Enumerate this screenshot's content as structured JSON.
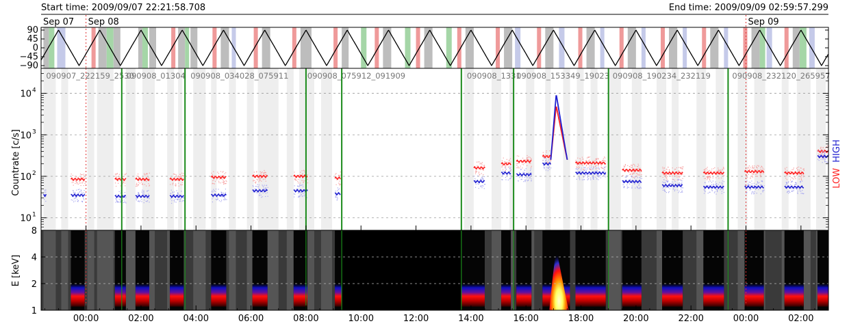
{
  "header": {
    "start_time": "Start time: 2009/09/07 22:21:58.708",
    "end_time": "End time: 2009/09/09 02:59:57.299"
  },
  "chart_data": {
    "type": "line",
    "time_axis": {
      "start_hour": -1.6336,
      "end_hour": 27.0,
      "tick_labels": [
        "00:00",
        "02:00",
        "04:00",
        "06:00",
        "08:00",
        "10:00",
        "12:00",
        "14:00",
        "16:00",
        "18:00",
        "20:00",
        "22:00",
        "00:00",
        "02:00"
      ],
      "tick_hours": [
        0,
        2,
        4,
        6,
        8,
        10,
        12,
        14,
        16,
        18,
        20,
        22,
        24,
        26
      ],
      "date_labels": [
        {
          "text": "Sep 07",
          "hour": -1.6336
        },
        {
          "text": "Sep 08",
          "hour": 0
        },
        {
          "text": "Sep 09",
          "hour": 24
        }
      ],
      "day_boundary_hours": [
        0,
        24
      ]
    },
    "angle_panel": {
      "ylim": [
        -90,
        90
      ],
      "ticks": [
        90,
        45,
        0,
        -45,
        -90
      ],
      "tick_labels": [
        "90",
        "45",
        "0",
        "−45",
        "−90"
      ],
      "period_hours": 1.5,
      "phase_hour": -1.0,
      "bands": [
        {
          "start": -1.55,
          "end": -1.35,
          "color": "#bdbdbd"
        },
        {
          "start": -1.35,
          "end": -1.15,
          "color": "#a5d6a7"
        },
        {
          "start": -1.05,
          "end": -0.75,
          "color": "#c5cae9"
        },
        {
          "start": 0.2,
          "end": 0.35,
          "color": "#ef9a9a"
        },
        {
          "start": 0.45,
          "end": 0.75,
          "color": "#bdbdbd"
        },
        {
          "start": 0.75,
          "end": 1.0,
          "color": "#a5d6a7"
        },
        {
          "start": 1.0,
          "end": 1.25,
          "color": "#bdbdbd"
        },
        {
          "start": 1.9,
          "end": 2.05,
          "color": "#bdbdbd"
        },
        {
          "start": 2.05,
          "end": 2.25,
          "color": "#a5d6a7"
        },
        {
          "start": 2.3,
          "end": 2.55,
          "color": "#bdbdbd"
        },
        {
          "start": 3.1,
          "end": 3.25,
          "color": "#ef9a9a"
        },
        {
          "start": 3.35,
          "end": 3.6,
          "color": "#bdbdbd"
        },
        {
          "start": 3.6,
          "end": 3.75,
          "color": "#a5d6a7"
        },
        {
          "start": 3.8,
          "end": 4.05,
          "color": "#bdbdbd"
        },
        {
          "start": 4.6,
          "end": 4.75,
          "color": "#ef9a9a"
        },
        {
          "start": 4.9,
          "end": 5.2,
          "color": "#bdbdbd"
        },
        {
          "start": 5.3,
          "end": 5.45,
          "color": "#c5cae9"
        },
        {
          "start": 6.1,
          "end": 6.25,
          "color": "#ef9a9a"
        },
        {
          "start": 6.4,
          "end": 6.7,
          "color": "#bdbdbd"
        },
        {
          "start": 7.5,
          "end": 7.65,
          "color": "#ef9a9a"
        },
        {
          "start": 7.8,
          "end": 8.2,
          "color": "#bdbdbd"
        },
        {
          "start": 9.0,
          "end": 9.15,
          "color": "#ef9a9a"
        },
        {
          "start": 9.3,
          "end": 9.55,
          "color": "#bdbdbd"
        },
        {
          "start": 10.0,
          "end": 10.2,
          "color": "#a5d6a7"
        },
        {
          "start": 10.5,
          "end": 10.65,
          "color": "#ef9a9a"
        },
        {
          "start": 10.8,
          "end": 11.1,
          "color": "#bdbdbd"
        },
        {
          "start": 11.6,
          "end": 11.8,
          "color": "#a5d6a7"
        },
        {
          "start": 12.0,
          "end": 12.15,
          "color": "#ef9a9a"
        },
        {
          "start": 12.3,
          "end": 12.6,
          "color": "#bdbdbd"
        },
        {
          "start": 13.1,
          "end": 13.3,
          "color": "#a5d6a7"
        },
        {
          "start": 13.5,
          "end": 13.65,
          "color": "#ef9a9a"
        },
        {
          "start": 13.8,
          "end": 14.1,
          "color": "#bdbdbd"
        },
        {
          "start": 14.9,
          "end": 15.05,
          "color": "#ef9a9a"
        },
        {
          "start": 15.2,
          "end": 15.5,
          "color": "#bdbdbd"
        },
        {
          "start": 15.6,
          "end": 15.8,
          "color": "#c5cae9"
        },
        {
          "start": 16.4,
          "end": 16.55,
          "color": "#ef9a9a"
        },
        {
          "start": 16.7,
          "end": 17.0,
          "color": "#bdbdbd"
        },
        {
          "start": 17.2,
          "end": 17.4,
          "color": "#c5cae9"
        },
        {
          "start": 17.9,
          "end": 18.05,
          "color": "#ef9a9a"
        },
        {
          "start": 18.2,
          "end": 18.5,
          "color": "#bdbdbd"
        },
        {
          "start": 18.7,
          "end": 18.85,
          "color": "#c5cae9"
        },
        {
          "start": 19.4,
          "end": 19.55,
          "color": "#ef9a9a"
        },
        {
          "start": 19.7,
          "end": 20.0,
          "color": "#bdbdbd"
        },
        {
          "start": 20.2,
          "end": 20.35,
          "color": "#c5cae9"
        },
        {
          "start": 20.9,
          "end": 21.05,
          "color": "#ef9a9a"
        },
        {
          "start": 21.2,
          "end": 21.5,
          "color": "#bdbdbd"
        },
        {
          "start": 21.7,
          "end": 21.85,
          "color": "#c5cae9"
        },
        {
          "start": 22.4,
          "end": 22.55,
          "color": "#ef9a9a"
        },
        {
          "start": 22.7,
          "end": 23.0,
          "color": "#bdbdbd"
        },
        {
          "start": 23.2,
          "end": 23.35,
          "color": "#c5cae9"
        },
        {
          "start": 23.9,
          "end": 24.05,
          "color": "#ef9a9a"
        },
        {
          "start": 24.2,
          "end": 24.5,
          "color": "#bdbdbd"
        },
        {
          "start": 24.5,
          "end": 24.7,
          "color": "#a5d6a7"
        },
        {
          "start": 24.75,
          "end": 24.95,
          "color": "#c5cae9"
        },
        {
          "start": 25.4,
          "end": 25.55,
          "color": "#ef9a9a"
        },
        {
          "start": 25.7,
          "end": 25.95,
          "color": "#bdbdbd"
        },
        {
          "start": 25.95,
          "end": 26.2,
          "color": "#a5d6a7"
        },
        {
          "start": 26.3,
          "end": 26.5,
          "color": "#c5cae9"
        }
      ]
    },
    "countrate_panel": {
      "ylabel": "Countrate [c/s]",
      "scale": "log",
      "ylim": [
        5,
        40000
      ],
      "major_ticks": [
        10,
        100,
        1000,
        10000
      ],
      "tick_labels": [
        {
          "base": "10",
          "exp": "1"
        },
        {
          "base": "10",
          "exp": "2"
        },
        {
          "base": "10",
          "exp": "3"
        },
        {
          "base": "10",
          "exp": "4"
        }
      ],
      "gridlines": [
        10,
        100,
        1000,
        10000
      ],
      "legend": [
        {
          "name": "LOW",
          "color": "#ff2020"
        },
        {
          "name": "HIGH",
          "color": "#2020d0"
        }
      ],
      "observation_labels": [
        {
          "text": "090907_222159_2530",
          "hour": -1.5
        },
        {
          "text": "090908_01304",
          "hour": 1.42
        },
        {
          "text": "090908_034028_075911",
          "hour": 3.75
        },
        {
          "text": "090908_075912_091909",
          "hour": 8.0
        },
        {
          "text": "090908_1331",
          "hour": 13.8
        },
        {
          "text": "090908_153349_19023",
          "hour": 15.6
        },
        {
          "text": "090908_190234_232119",
          "hour": 19.1
        },
        {
          "text": "090908_232120_265957",
          "hour": 23.45
        }
      ],
      "segment_boundaries": [
        1.3,
        3.6,
        8.0,
        9.3,
        13.65,
        15.55,
        19.0,
        23.35
      ],
      "shaded_intervals": [
        {
          "start": -1.55,
          "end": -1.1
        },
        {
          "start": -0.9,
          "end": -0.65
        },
        {
          "start": 0.05,
          "end": 0.3
        },
        {
          "start": 0.4,
          "end": 1.0
        },
        {
          "start": 1.45,
          "end": 1.8
        },
        {
          "start": 2.05,
          "end": 2.5
        },
        {
          "start": 2.95,
          "end": 3.2
        },
        {
          "start": 3.35,
          "end": 3.5
        },
        {
          "start": 3.9,
          "end": 4.35
        },
        {
          "start": 4.55,
          "end": 4.75
        },
        {
          "start": 5.2,
          "end": 5.45
        },
        {
          "start": 5.85,
          "end": 6.1
        },
        {
          "start": 6.25,
          "end": 7.0
        },
        {
          "start": 7.3,
          "end": 7.55
        },
        {
          "start": 7.75,
          "end": 8.3
        },
        {
          "start": 8.55,
          "end": 8.95
        },
        {
          "start": 13.75,
          "end": 14.1
        },
        {
          "start": 14.75,
          "end": 15.1
        },
        {
          "start": 15.4,
          "end": 15.55
        },
        {
          "start": 16.0,
          "end": 16.3
        },
        {
          "start": 16.7,
          "end": 16.9
        },
        {
          "start": 17.35,
          "end": 17.6
        },
        {
          "start": 17.85,
          "end": 18.1
        },
        {
          "start": 18.35,
          "end": 18.6
        },
        {
          "start": 19.0,
          "end": 19.45
        },
        {
          "start": 19.85,
          "end": 20.2
        },
        {
          "start": 20.75,
          "end": 21.1
        },
        {
          "start": 21.3,
          "end": 21.55
        },
        {
          "start": 22.2,
          "end": 22.55
        },
        {
          "start": 22.9,
          "end": 23.2
        },
        {
          "start": 23.7,
          "end": 24.05
        },
        {
          "start": 24.3,
          "end": 24.7
        },
        {
          "start": 25.3,
          "end": 25.55
        },
        {
          "start": 25.85,
          "end": 26.35
        },
        {
          "start": 26.55,
          "end": 26.9
        }
      ],
      "series": [
        {
          "name": "LOW",
          "color": "#ff2020",
          "segments": [
            {
              "start": -0.55,
              "end": -0.05,
              "level": 85
            },
            {
              "start": 1.05,
              "end": 1.45,
              "level": 85
            },
            {
              "start": 1.8,
              "end": 2.3,
              "level": 85
            },
            {
              "start": 3.05,
              "end": 3.55,
              "level": 85
            },
            {
              "start": 4.55,
              "end": 5.1,
              "level": 95
            },
            {
              "start": 6.05,
              "end": 6.6,
              "level": 100
            },
            {
              "start": 7.55,
              "end": 8.05,
              "level": 100
            },
            {
              "start": 9.05,
              "end": 9.25,
              "level": 90
            },
            {
              "start": 14.1,
              "end": 14.5,
              "level": 160
            },
            {
              "start": 15.1,
              "end": 15.45,
              "level": 200
            },
            {
              "start": 15.65,
              "end": 16.2,
              "level": 230
            },
            {
              "start": 16.6,
              "end": 16.9,
              "level": 300
            },
            {
              "start": 17.8,
              "end": 18.9,
              "level": 210
            },
            {
              "start": 19.5,
              "end": 20.2,
              "level": 140
            },
            {
              "start": 20.95,
              "end": 21.7,
              "level": 120
            },
            {
              "start": 22.45,
              "end": 23.2,
              "level": 120
            },
            {
              "start": 23.95,
              "end": 24.65,
              "level": 130
            },
            {
              "start": 25.4,
              "end": 26.1,
              "level": 120
            },
            {
              "start": 26.6,
              "end": 27.0,
              "level": 400
            }
          ],
          "peak": {
            "rise_start": 16.9,
            "peak_hour": 17.1,
            "peak_value": 5000,
            "decay_end": 17.5
          }
        },
        {
          "name": "HIGH",
          "color": "#2020d0",
          "segments": [
            {
              "start": -1.55,
              "end": -1.45,
              "level": 35
            },
            {
              "start": -0.55,
              "end": -0.05,
              "level": 35
            },
            {
              "start": 1.05,
              "end": 1.45,
              "level": 33
            },
            {
              "start": 1.8,
              "end": 2.3,
              "level": 33
            },
            {
              "start": 3.05,
              "end": 3.55,
              "level": 33
            },
            {
              "start": 4.55,
              "end": 5.1,
              "level": 35
            },
            {
              "start": 6.05,
              "end": 6.6,
              "level": 45
            },
            {
              "start": 7.55,
              "end": 8.05,
              "level": 45
            },
            {
              "start": 9.05,
              "end": 9.25,
              "level": 38
            },
            {
              "start": 14.1,
              "end": 14.5,
              "level": 75
            },
            {
              "start": 15.1,
              "end": 15.45,
              "level": 120
            },
            {
              "start": 15.65,
              "end": 16.2,
              "level": 110
            },
            {
              "start": 16.6,
              "end": 16.9,
              "level": 200
            },
            {
              "start": 17.8,
              "end": 18.9,
              "level": 120
            },
            {
              "start": 19.5,
              "end": 20.2,
              "level": 75
            },
            {
              "start": 20.95,
              "end": 21.7,
              "level": 60
            },
            {
              "start": 22.45,
              "end": 23.2,
              "level": 55
            },
            {
              "start": 23.95,
              "end": 24.65,
              "level": 55
            },
            {
              "start": 25.4,
              "end": 26.1,
              "level": 55
            },
            {
              "start": 26.6,
              "end": 27.0,
              "level": 300
            }
          ],
          "peak": {
            "rise_start": 16.9,
            "peak_hour": 17.1,
            "peak_value": 9500,
            "decay_end": 17.5
          }
        }
      ]
    },
    "spectrogram_panel": {
      "ylabel": "E [keV]",
      "scale": "log",
      "ylim": [
        1,
        8
      ],
      "ticks": [
        1,
        2,
        4,
        8
      ],
      "tick_labels": [
        "1",
        "2",
        "4",
        "8"
      ],
      "background_color": "#3a3a3a",
      "nodata_color": "#000000",
      "nodata_interval": {
        "start": 9.3,
        "end": 13.65
      },
      "observing_intervals": [
        {
          "start": -0.55,
          "end": -0.05
        },
        {
          "start": 1.05,
          "end": 1.45
        },
        {
          "start": 1.8,
          "end": 2.3
        },
        {
          "start": 3.05,
          "end": 3.55
        },
        {
          "start": 4.55,
          "end": 5.1
        },
        {
          "start": 6.05,
          "end": 6.6
        },
        {
          "start": 7.55,
          "end": 8.05
        },
        {
          "start": 9.05,
          "end": 9.3
        },
        {
          "start": 13.65,
          "end": 14.5
        },
        {
          "start": 15.1,
          "end": 15.45
        },
        {
          "start": 15.65,
          "end": 16.2
        },
        {
          "start": 16.6,
          "end": 17.6
        },
        {
          "start": 17.8,
          "end": 18.9
        },
        {
          "start": 19.5,
          "end": 20.2
        },
        {
          "start": 20.95,
          "end": 21.7
        },
        {
          "start": 22.45,
          "end": 23.2
        },
        {
          "start": 23.95,
          "end": 24.65
        },
        {
          "start": 25.4,
          "end": 26.1
        },
        {
          "start": 26.6,
          "end": 27.0
        }
      ],
      "flare": {
        "start": 16.85,
        "end": 17.55,
        "peak_hour": 17.1,
        "top_energy": 5.0
      }
    }
  }
}
